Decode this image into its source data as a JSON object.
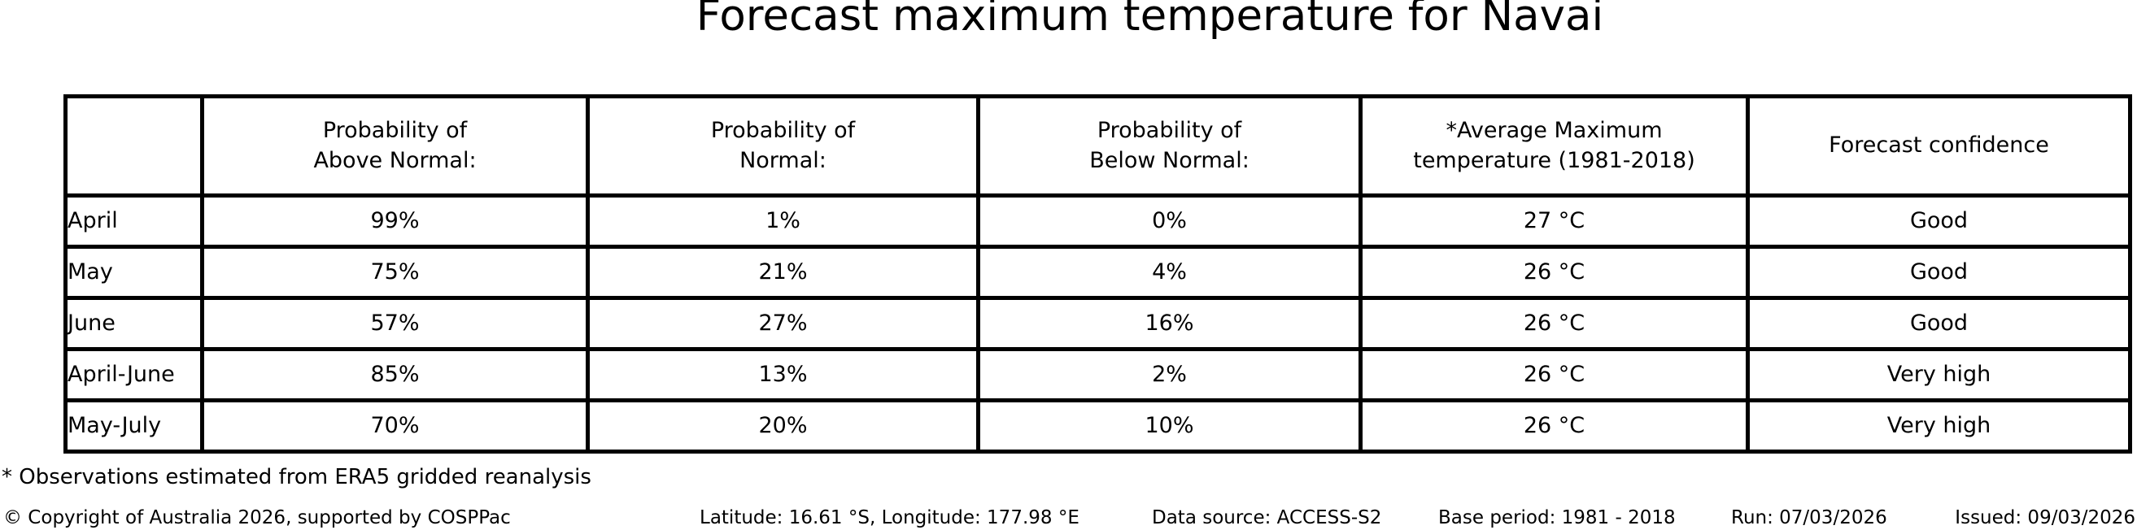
{
  "chart_data": {
    "type": "table",
    "title": "Forecast maximum temperature for Navai",
    "columns": [
      "Probability of\nAbove Normal:",
      "Probability of\nNormal:",
      "Probability of\nBelow Normal:",
      "*Average Maximum\ntemperature (1981-2018)",
      "Forecast confidence"
    ],
    "row_labels": [
      "April",
      "May",
      "June",
      "April-June",
      "May-July"
    ],
    "rows": [
      [
        "99%",
        "1%",
        "0%",
        "27 °C",
        "Good"
      ],
      [
        "75%",
        "21%",
        "4%",
        "26 °C",
        "Good"
      ],
      [
        "57%",
        "27%",
        "16%",
        "26 °C",
        "Good"
      ],
      [
        "85%",
        "13%",
        "2%",
        "26 °C",
        "Very high"
      ],
      [
        "70%",
        "20%",
        "10%",
        "26 °C",
        "Very high"
      ]
    ],
    "layout_hints": {
      "grid": "all-borders",
      "corner_cell_empty": true
    }
  },
  "footnote": "* Observations estimated from ERA5 gridded reanalysis",
  "footer": {
    "copyright": "© Copyright of Australia 2026, supported by COSPPac",
    "location": "Latitude: 16.61 °S, Longitude: 177.98 °E",
    "data_source": "Data source: ACCESS-S2",
    "base_period": "Base period: 1981 - 2018",
    "run": "Run: 07/03/2026",
    "issued": "Issued: 09/03/2026"
  },
  "colors": {
    "text": "#000000",
    "background": "#ffffff",
    "border": "#000000"
  }
}
